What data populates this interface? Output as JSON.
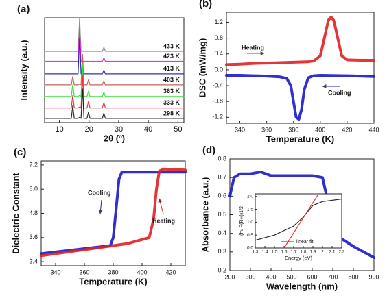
{
  "chart_data": [
    {
      "type": "line",
      "label": "(a)",
      "xlabel": "2θ (º)",
      "ylabel": "Intensity (a.u.)",
      "xlim": [
        5,
        52
      ],
      "xticks": [
        10,
        20,
        30,
        40,
        50
      ],
      "ylim": [
        0,
        10
      ],
      "x": [
        5,
        14,
        14.5,
        15,
        16.3,
        16.8,
        17.3,
        17.8,
        18.3,
        19.3,
        19.8,
        20.3,
        24.5,
        25,
        25.5,
        30,
        52
      ],
      "series": [
        {
          "name": "433 K",
          "color": "#808080",
          "values": [
            6.8,
            6.8,
            6.8,
            6.8,
            6.8,
            10,
            6.8,
            6.8,
            6.8,
            6.8,
            6.8,
            6.8,
            6.8,
            7.2,
            6.8,
            6.8,
            6.8
          ]
        },
        {
          "name": "423 K",
          "color": "#e020e0",
          "values": [
            5.85,
            5.85,
            5.85,
            5.85,
            5.85,
            9,
            5.85,
            5.85,
            5.85,
            5.85,
            5.85,
            5.85,
            5.85,
            6.2,
            5.85,
            5.85,
            5.85
          ]
        },
        {
          "name": "413 K",
          "color": "#1a1aa8",
          "values": [
            4.65,
            4.65,
            4.65,
            4.65,
            4.65,
            8,
            4.65,
            4.65,
            4.65,
            4.65,
            4.65,
            4.65,
            4.65,
            5,
            4.65,
            4.65,
            4.65
          ]
        },
        {
          "name": "403 K",
          "color": "#c0504d",
          "values": [
            3.6,
            3.6,
            4.4,
            3.6,
            3.6,
            3.7,
            3.6,
            6.5,
            3.6,
            3.6,
            4.1,
            3.6,
            3.6,
            4,
            3.6,
            3.6,
            3.6
          ]
        },
        {
          "name": "363 K",
          "color": "#22dd22",
          "values": [
            2.5,
            2.5,
            3.6,
            2.5,
            2.5,
            2.6,
            2.5,
            5.5,
            2.5,
            2.5,
            3,
            2.5,
            2.5,
            2.9,
            2.5,
            2.5,
            2.5
          ]
        },
        {
          "name": "333 K",
          "color": "#e02020",
          "values": [
            1.4,
            1.4,
            2.6,
            1.4,
            1.4,
            1.5,
            1.4,
            4.5,
            1.4,
            1.4,
            2,
            1.4,
            1.4,
            1.9,
            1.4,
            1.4,
            1.4
          ]
        },
        {
          "name": "298 K",
          "color": "#111111",
          "values": [
            0.4,
            0.4,
            1.6,
            0.4,
            0.4,
            0.5,
            0.4,
            3.2,
            0.4,
            0.4,
            1,
            0.4,
            0.4,
            0.9,
            0.4,
            0.4,
            0.4
          ]
        }
      ]
    },
    {
      "type": "line",
      "label": "(b)",
      "xlabel": "Temperature (K)",
      "ylabel": "DSC (mW/mg)",
      "xlim": [
        330,
        440
      ],
      "xticks": [
        340,
        360,
        380,
        400,
        420,
        440
      ],
      "ylim": [
        -1.35,
        1.45
      ],
      "yticks": [
        -1.2,
        -0.8,
        -0.4,
        {
          "value": 0,
          "label": "0.0"
        },
        0.4,
        0.8,
        1.2
      ],
      "series": [
        {
          "name": "Heating",
          "color": "#e02020",
          "x": [
            330,
            340,
            350,
            360,
            370,
            380,
            390,
            395,
            400,
            403,
            406,
            408,
            410,
            413,
            416,
            420,
            430,
            440
          ],
          "values": [
            0.13,
            0.14,
            0.16,
            0.17,
            0.18,
            0.19,
            0.2,
            0.22,
            0.35,
            0.8,
            1.25,
            1.33,
            1.25,
            0.8,
            0.35,
            0.25,
            0.24,
            0.24
          ]
        },
        {
          "name": "Cooling",
          "color": "#1a1acc",
          "x": [
            330,
            340,
            350,
            360,
            370,
            375,
            378,
            380,
            382,
            384,
            386,
            388,
            391,
            395,
            400,
            420,
            440
          ],
          "values": [
            -0.14,
            -0.14,
            -0.15,
            -0.16,
            -0.18,
            -0.22,
            -0.4,
            -0.8,
            -1.2,
            -1.25,
            -1,
            -0.5,
            -0.2,
            -0.15,
            -0.14,
            -0.15,
            -0.17
          ]
        }
      ]
    },
    {
      "type": "line",
      "label": "(c)",
      "xlabel": "Temperature (K)",
      "ylabel": "Dielectric Constant",
      "xlim": [
        330,
        430
      ],
      "xticks": [
        340,
        360,
        380,
        400,
        420
      ],
      "ylim": [
        2.2,
        7.4
      ],
      "yticks": [
        2.4,
        3.6,
        4.8,
        {
          "value": 6,
          "label": "6.0"
        },
        7.2
      ],
      "series": [
        {
          "name": "Cooling",
          "color": "#1a1acc",
          "x": [
            330,
            360,
            378,
            380,
            382,
            384,
            386,
            400,
            430
          ],
          "values": [
            2.8,
            3.05,
            3.2,
            3.6,
            5,
            6.5,
            6.85,
            6.85,
            6.85
          ]
        },
        {
          "name": "Heating",
          "color": "#e02020",
          "x": [
            330,
            360,
            390,
            405,
            408,
            410,
            412,
            415,
            430
          ],
          "values": [
            2.7,
            3,
            3.3,
            3.6,
            4.5,
            6,
            6.9,
            7,
            6.95
          ]
        }
      ]
    },
    {
      "type": "line",
      "label": "(d)",
      "xlabel": "Wavelength (nm)",
      "ylabel": "Absorbance (a.u.)",
      "xlim": [
        200,
        900
      ],
      "xticks": [
        200,
        300,
        400,
        500,
        600,
        700,
        800,
        900
      ],
      "ylim": [
        0.2,
        0.8
      ],
      "yticks": [
        0.2,
        0.3,
        0.4,
        0.5,
        0.6,
        0.7,
        0.8
      ],
      "series": [
        {
          "color": "#1a1acc",
          "x": [
            200,
            220,
            250,
            300,
            350,
            400,
            500,
            600,
            650,
            670,
            700,
            730,
            800,
            900
          ],
          "values": [
            0.6,
            0.7,
            0.72,
            0.72,
            0.73,
            0.71,
            0.71,
            0.71,
            0.7,
            0.6,
            0.45,
            0.38,
            0.33,
            0.27
          ]
        }
      ],
      "inset": {
        "type": "line",
        "xlabel": "Energy (eV)",
        "ylabel": "(hν F(R∞))1/2",
        "xlim": [
          1.3,
          2.2
        ],
        "xticks": [
          1.3,
          1.4,
          1.5,
          1.6,
          1.7,
          1.8,
          1.9,
          2,
          2.1,
          2.2
        ],
        "ylim": [
          0,
          2.1
        ],
        "yticks": [
          {
            "value": 0,
            "label": "0.0"
          },
          0.5,
          {
            "value": 1,
            "label": "1.0"
          },
          1.5,
          {
            "value": 2,
            "label": "2.0"
          }
        ],
        "series": [
          {
            "color": "#111111",
            "x": [
              1.3,
              1.5,
              1.7,
              1.8,
              1.9,
              2,
              2.2
            ],
            "values": [
              0.3,
              0.5,
              0.85,
              1.2,
              1.65,
              1.8,
              1.9
            ]
          },
          {
            "name": "linear fit",
            "color": "#e02020",
            "x": [
              1.6,
              1.95
            ],
            "values": [
              0,
              2.05
            ]
          }
        ]
      }
    }
  ]
}
